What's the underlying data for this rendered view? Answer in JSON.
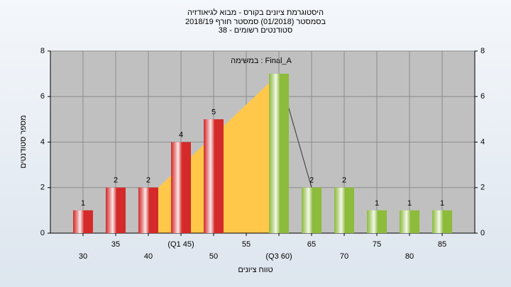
{
  "chart_data": {
    "type": "bar",
    "title": "היסטוגרמת ציונים בקורס - מבוא לגיאודזיה",
    "subtitle": "בסמסטר (01/2018) סמסטר חורף 2018/19",
    "subtitle2": "סטודנטים רשומים - 38",
    "annotation": "במשימה : Final_A",
    "x_label": "טווח ציונים",
    "y_label": "מספר סטודנטים",
    "categories": [
      "30",
      "35",
      "40",
      "(Q1 45)",
      "50",
      "55",
      "(Q3 60)",
      "65",
      "70",
      "75",
      "80",
      "85"
    ],
    "values": [
      1,
      2,
      2,
      4,
      5,
      0,
      7,
      2,
      2,
      1,
      1,
      1
    ],
    "value_labels": [
      "1",
      "2",
      "2",
      "4",
      "5",
      null,
      null,
      "2",
      "2",
      "1",
      "1",
      "1"
    ],
    "colors": [
      "#d42a2a",
      "#d42a2a",
      "#d42a2a",
      "#d42a2a",
      "#d42a2a",
      "#d42a2a",
      "#8dbb3c",
      "#8dbb3c",
      "#8dbb3c",
      "#8dbb3c",
      "#8dbb3c",
      "#8dbb3c"
    ],
    "ylim": [
      0,
      8
    ],
    "yticks": [
      0,
      2,
      4,
      6,
      8
    ],
    "grid": true
  }
}
